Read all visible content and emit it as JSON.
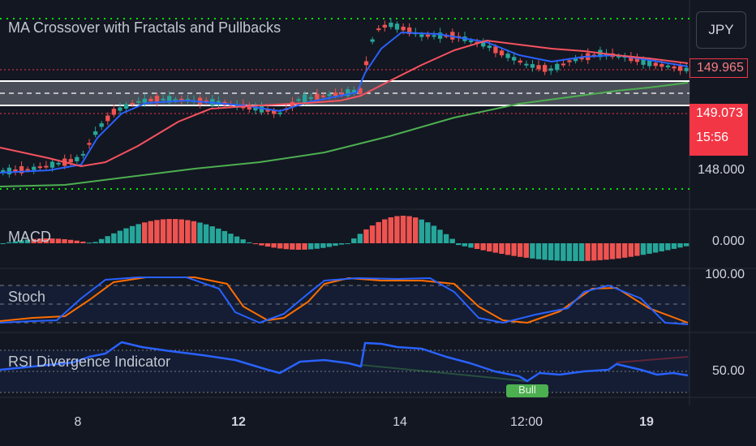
{
  "header": {
    "symbol_currency": "JPY"
  },
  "panes": {
    "main": {
      "title": "MA Crossover with Fractals and Pullbacks"
    },
    "macd": {
      "title": "MACD",
      "value_label": "0.000"
    },
    "stoch": {
      "title": "Stoch",
      "value_label": "100.00"
    },
    "rsi": {
      "title": "RSI Divergence Indicator",
      "value_label": "50.00",
      "signal_label": "Bull"
    }
  },
  "price_axis": {
    "last_close": "149.965",
    "current_price": "149.073",
    "countdown": "15:56",
    "level_label": "148.000"
  },
  "time_axis": {
    "ticks": [
      {
        "label": "8",
        "bold": false
      },
      {
        "label": "12",
        "bold": true
      },
      {
        "label": "14",
        "bold": false
      },
      {
        "label": "12:00",
        "bold": false
      },
      {
        "label": "19",
        "bold": true
      }
    ]
  },
  "colors": {
    "background": "#131722",
    "bull": "#26a69a",
    "bear": "#ef5350",
    "fast_ma": "#2962ff",
    "slow_ma": "#f7525f",
    "long_ma": "#4caf50",
    "fractal_dots": "#00e600",
    "stoch_k": "#2962ff",
    "stoch_d": "#ff6d00",
    "rsi": "#2962ff"
  },
  "chart_data": {
    "type": "candlestick",
    "price_levels": {
      "upper_band": 149.965,
      "lower_band": 149.073,
      "axis_tick": 148.0
    },
    "macd_zero": 0.0,
    "stoch_range": [
      0,
      100
    ],
    "rsi_mid": 50
  }
}
